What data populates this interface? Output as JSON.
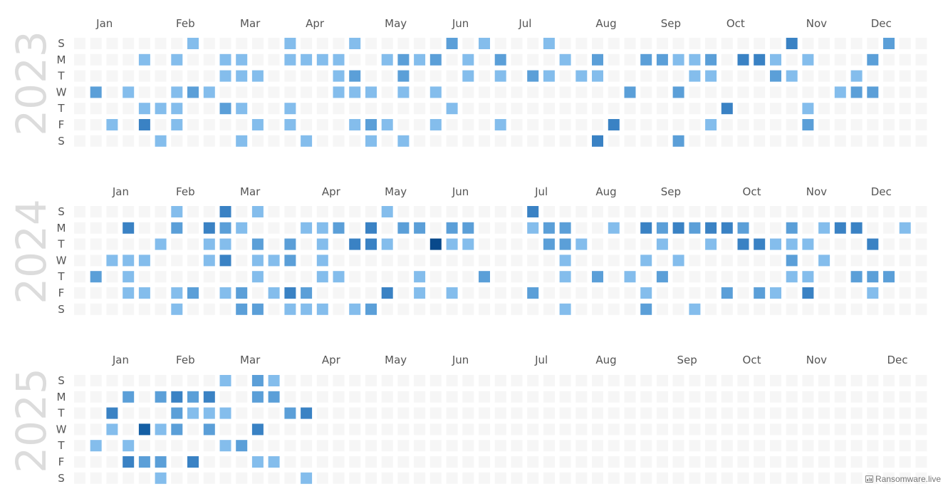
{
  "chart_data": {
    "type": "heatmap",
    "calendar": "weekly",
    "week_start": "Sunday",
    "day_labels": [
      "S",
      "M",
      "T",
      "W",
      "T",
      "F",
      "S"
    ],
    "color_scale": [
      "#f6f6f6",
      "#84bdec",
      "#5b9fd8",
      "#3a82c4",
      "#155fa4",
      "#08498b"
    ],
    "years": [
      {
        "year": "2023",
        "month_labels": [
          "Jan",
          "Feb",
          "Mar",
          "Apr",
          "May",
          "Jun",
          "Jul",
          "Aug",
          "Sep",
          "Oct",
          "Nov",
          "Dec"
        ],
        "month_label_weeks": [
          1,
          6,
          10,
          14,
          19,
          23,
          27,
          32,
          36,
          40,
          45,
          49
        ],
        "weeks": 53,
        "cells": [
          [
            7,
            0,
            1
          ],
          [
            13,
            0,
            1
          ],
          [
            17,
            0,
            1
          ],
          [
            23,
            0,
            2
          ],
          [
            25,
            0,
            1
          ],
          [
            29,
            0,
            1
          ],
          [
            44,
            0,
            3
          ],
          [
            50,
            0,
            2
          ],
          [
            4,
            1,
            1
          ],
          [
            6,
            1,
            1
          ],
          [
            9,
            1,
            1
          ],
          [
            10,
            1,
            1
          ],
          [
            13,
            1,
            1
          ],
          [
            14,
            1,
            1
          ],
          [
            15,
            1,
            1
          ],
          [
            16,
            1,
            1
          ],
          [
            19,
            1,
            1
          ],
          [
            20,
            1,
            2
          ],
          [
            21,
            1,
            1
          ],
          [
            22,
            1,
            2
          ],
          [
            24,
            1,
            1
          ],
          [
            26,
            1,
            2
          ],
          [
            30,
            1,
            1
          ],
          [
            32,
            1,
            2
          ],
          [
            35,
            1,
            2
          ],
          [
            36,
            1,
            2
          ],
          [
            37,
            1,
            1
          ],
          [
            38,
            1,
            1
          ],
          [
            39,
            1,
            2
          ],
          [
            41,
            1,
            3
          ],
          [
            42,
            1,
            3
          ],
          [
            43,
            1,
            1
          ],
          [
            45,
            1,
            1
          ],
          [
            49,
            1,
            2
          ],
          [
            9,
            2,
            1
          ],
          [
            10,
            2,
            1
          ],
          [
            11,
            2,
            1
          ],
          [
            16,
            2,
            1
          ],
          [
            17,
            2,
            2
          ],
          [
            20,
            2,
            2
          ],
          [
            24,
            2,
            1
          ],
          [
            26,
            2,
            1
          ],
          [
            28,
            2,
            2
          ],
          [
            29,
            2,
            1
          ],
          [
            31,
            2,
            1
          ],
          [
            32,
            2,
            1
          ],
          [
            38,
            2,
            1
          ],
          [
            39,
            2,
            1
          ],
          [
            43,
            2,
            2
          ],
          [
            44,
            2,
            1
          ],
          [
            48,
            2,
            1
          ],
          [
            1,
            3,
            2
          ],
          [
            3,
            3,
            1
          ],
          [
            6,
            3,
            1
          ],
          [
            7,
            3,
            2
          ],
          [
            8,
            3,
            1
          ],
          [
            16,
            3,
            1
          ],
          [
            17,
            3,
            1
          ],
          [
            18,
            3,
            1
          ],
          [
            20,
            3,
            1
          ],
          [
            22,
            3,
            1
          ],
          [
            34,
            3,
            2
          ],
          [
            37,
            3,
            2
          ],
          [
            47,
            3,
            1
          ],
          [
            48,
            3,
            2
          ],
          [
            49,
            3,
            2
          ],
          [
            4,
            4,
            1
          ],
          [
            5,
            4,
            1
          ],
          [
            6,
            4,
            1
          ],
          [
            9,
            4,
            2
          ],
          [
            10,
            4,
            1
          ],
          [
            13,
            4,
            1
          ],
          [
            23,
            4,
            1
          ],
          [
            40,
            4,
            3
          ],
          [
            45,
            4,
            1
          ],
          [
            2,
            5,
            1
          ],
          [
            4,
            5,
            3
          ],
          [
            6,
            5,
            1
          ],
          [
            11,
            5,
            1
          ],
          [
            13,
            5,
            1
          ],
          [
            17,
            5,
            1
          ],
          [
            18,
            5,
            2
          ],
          [
            19,
            5,
            1
          ],
          [
            22,
            5,
            1
          ],
          [
            26,
            5,
            1
          ],
          [
            33,
            5,
            3
          ],
          [
            39,
            5,
            1
          ],
          [
            45,
            5,
            2
          ],
          [
            5,
            6,
            1
          ],
          [
            10,
            6,
            1
          ],
          [
            14,
            6,
            1
          ],
          [
            18,
            6,
            1
          ],
          [
            20,
            6,
            1
          ],
          [
            32,
            6,
            3
          ],
          [
            37,
            6,
            2
          ]
        ]
      },
      {
        "year": "2024",
        "month_labels": [
          "Jan",
          "Feb",
          "Mar",
          "Apr",
          "May",
          "Jun",
          "Jul",
          "Aug",
          "Sep",
          "Oct",
          "Nov",
          "Dec"
        ],
        "month_label_weeks": [
          2,
          6,
          10,
          15,
          19,
          23,
          28,
          32,
          36,
          41,
          45,
          49
        ],
        "weeks": 53,
        "cells": [
          [
            6,
            0,
            1
          ],
          [
            9,
            0,
            3
          ],
          [
            11,
            0,
            1
          ],
          [
            19,
            0,
            1
          ],
          [
            28,
            0,
            3
          ],
          [
            3,
            1,
            3
          ],
          [
            6,
            1,
            2
          ],
          [
            8,
            1,
            3
          ],
          [
            9,
            1,
            2
          ],
          [
            10,
            1,
            1
          ],
          [
            14,
            1,
            1
          ],
          [
            15,
            1,
            1
          ],
          [
            16,
            1,
            2
          ],
          [
            18,
            1,
            3
          ],
          [
            20,
            1,
            2
          ],
          [
            21,
            1,
            2
          ],
          [
            23,
            1,
            2
          ],
          [
            24,
            1,
            2
          ],
          [
            28,
            1,
            1
          ],
          [
            29,
            1,
            2
          ],
          [
            30,
            1,
            2
          ],
          [
            33,
            1,
            1
          ],
          [
            35,
            1,
            3
          ],
          [
            36,
            1,
            2
          ],
          [
            37,
            1,
            3
          ],
          [
            38,
            1,
            2
          ],
          [
            39,
            1,
            3
          ],
          [
            40,
            1,
            3
          ],
          [
            41,
            1,
            2
          ],
          [
            44,
            1,
            2
          ],
          [
            46,
            1,
            1
          ],
          [
            47,
            1,
            3
          ],
          [
            48,
            1,
            3
          ],
          [
            51,
            1,
            1
          ],
          [
            5,
            2,
            1
          ],
          [
            8,
            2,
            1
          ],
          [
            9,
            2,
            1
          ],
          [
            11,
            2,
            2
          ],
          [
            13,
            2,
            2
          ],
          [
            15,
            2,
            1
          ],
          [
            17,
            2,
            3
          ],
          [
            18,
            2,
            3
          ],
          [
            19,
            2,
            1
          ],
          [
            22,
            2,
            5
          ],
          [
            23,
            2,
            1
          ],
          [
            24,
            2,
            1
          ],
          [
            29,
            2,
            2
          ],
          [
            30,
            2,
            2
          ],
          [
            31,
            2,
            1
          ],
          [
            36,
            2,
            1
          ],
          [
            39,
            2,
            1
          ],
          [
            41,
            2,
            3
          ],
          [
            42,
            2,
            3
          ],
          [
            43,
            2,
            1
          ],
          [
            44,
            2,
            1
          ],
          [
            45,
            2,
            1
          ],
          [
            49,
            2,
            3
          ],
          [
            2,
            3,
            1
          ],
          [
            3,
            3,
            1
          ],
          [
            4,
            3,
            1
          ],
          [
            8,
            3,
            1
          ],
          [
            9,
            3,
            3
          ],
          [
            11,
            3,
            1
          ],
          [
            12,
            3,
            1
          ],
          [
            13,
            3,
            2
          ],
          [
            15,
            3,
            1
          ],
          [
            30,
            3,
            1
          ],
          [
            35,
            3,
            1
          ],
          [
            37,
            3,
            1
          ],
          [
            44,
            3,
            2
          ],
          [
            46,
            3,
            1
          ],
          [
            1,
            4,
            2
          ],
          [
            3,
            4,
            1
          ],
          [
            11,
            4,
            1
          ],
          [
            15,
            4,
            1
          ],
          [
            16,
            4,
            1
          ],
          [
            21,
            4,
            1
          ],
          [
            25,
            4,
            2
          ],
          [
            30,
            4,
            1
          ],
          [
            32,
            4,
            2
          ],
          [
            34,
            4,
            1
          ],
          [
            36,
            4,
            2
          ],
          [
            44,
            4,
            1
          ],
          [
            45,
            4,
            1
          ],
          [
            48,
            4,
            2
          ],
          [
            49,
            4,
            2
          ],
          [
            50,
            4,
            2
          ],
          [
            3,
            5,
            1
          ],
          [
            4,
            5,
            1
          ],
          [
            6,
            5,
            1
          ],
          [
            7,
            5,
            2
          ],
          [
            9,
            5,
            1
          ],
          [
            10,
            5,
            2
          ],
          [
            12,
            5,
            1
          ],
          [
            13,
            5,
            3
          ],
          [
            14,
            5,
            2
          ],
          [
            19,
            5,
            3
          ],
          [
            21,
            5,
            1
          ],
          [
            23,
            5,
            1
          ],
          [
            28,
            5,
            2
          ],
          [
            35,
            5,
            1
          ],
          [
            40,
            5,
            2
          ],
          [
            42,
            5,
            2
          ],
          [
            43,
            5,
            1
          ],
          [
            45,
            5,
            3
          ],
          [
            49,
            5,
            1
          ],
          [
            6,
            6,
            1
          ],
          [
            10,
            6,
            2
          ],
          [
            11,
            6,
            2
          ],
          [
            13,
            6,
            1
          ],
          [
            14,
            6,
            1
          ],
          [
            15,
            6,
            1
          ],
          [
            17,
            6,
            1
          ],
          [
            18,
            6,
            2
          ],
          [
            30,
            6,
            1
          ],
          [
            35,
            6,
            2
          ],
          [
            38,
            6,
            1
          ]
        ]
      },
      {
        "year": "2025",
        "month_labels": [
          "Jan",
          "Feb",
          "Mar",
          "Apr",
          "May",
          "Jun",
          "Jul",
          "Aug",
          "Sep",
          "Oct",
          "Nov",
          "Dec"
        ],
        "month_label_weeks": [
          2,
          6,
          10,
          15,
          19,
          23,
          28,
          32,
          37,
          41,
          45,
          50
        ],
        "weeks": 53,
        "cells": [
          [
            9,
            0,
            1
          ],
          [
            11,
            0,
            2
          ],
          [
            12,
            0,
            1
          ],
          [
            3,
            1,
            2
          ],
          [
            5,
            1,
            2
          ],
          [
            6,
            1,
            3
          ],
          [
            7,
            1,
            2
          ],
          [
            8,
            1,
            3
          ],
          [
            11,
            1,
            2
          ],
          [
            12,
            1,
            2
          ],
          [
            2,
            2,
            3
          ],
          [
            6,
            2,
            2
          ],
          [
            7,
            2,
            1
          ],
          [
            8,
            2,
            1
          ],
          [
            9,
            2,
            1
          ],
          [
            13,
            2,
            2
          ],
          [
            14,
            2,
            3
          ],
          [
            2,
            3,
            1
          ],
          [
            4,
            3,
            4
          ],
          [
            5,
            3,
            1
          ],
          [
            6,
            3,
            2
          ],
          [
            8,
            3,
            2
          ],
          [
            11,
            3,
            3
          ],
          [
            1,
            4,
            1
          ],
          [
            3,
            4,
            1
          ],
          [
            9,
            4,
            1
          ],
          [
            10,
            4,
            2
          ],
          [
            3,
            5,
            3
          ],
          [
            4,
            5,
            2
          ],
          [
            5,
            5,
            2
          ],
          [
            7,
            5,
            3
          ],
          [
            11,
            5,
            1
          ],
          [
            12,
            5,
            1
          ],
          [
            5,
            6,
            1
          ],
          [
            14,
            6,
            1
          ]
        ]
      }
    ]
  },
  "watermark": {
    "text": "Ransomware.live",
    "icon": "bar-chart-icon"
  }
}
